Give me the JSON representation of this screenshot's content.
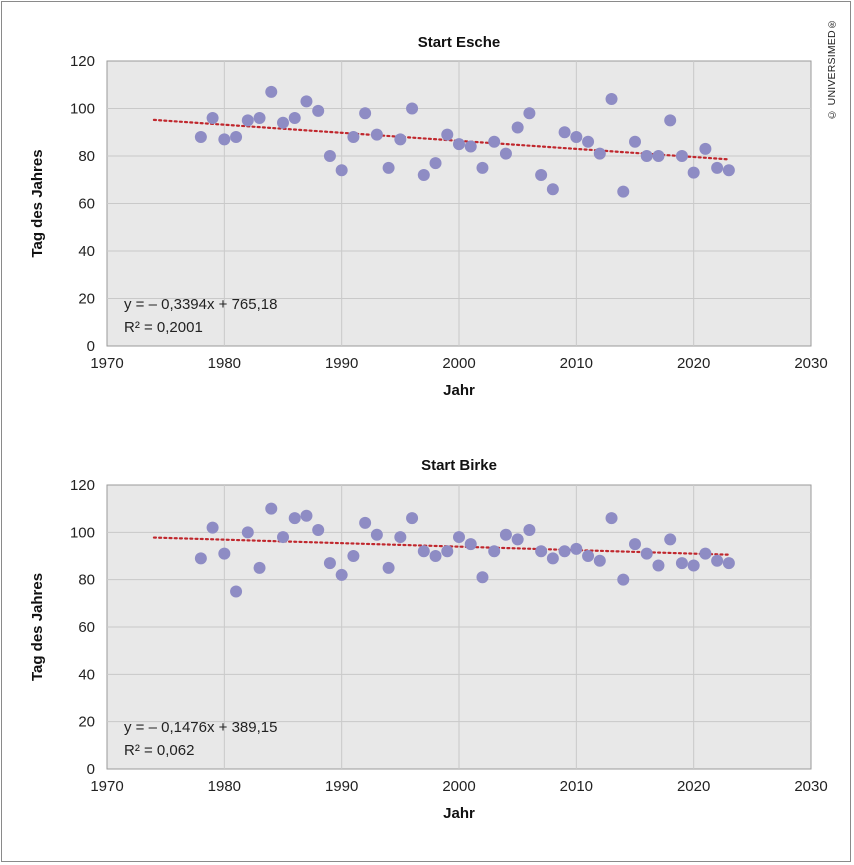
{
  "copyright": "© UNIVERSIMED®",
  "chart_data": [
    {
      "type": "scatter",
      "title": "Start Esche",
      "xlabel": "Jahr",
      "ylabel": "Tag des Jahres",
      "xlim": [
        1970,
        2030
      ],
      "ylim": [
        0,
        120
      ],
      "xticks": [
        "1970",
        "1980",
        "1990",
        "2000",
        "2010",
        "2020",
        "2030"
      ],
      "yticks": [
        "0",
        "20",
        "40",
        "60",
        "80",
        "100",
        "120"
      ],
      "grid": true,
      "marker_color": "#8e8cc4",
      "trend_color": "#c0272d",
      "x": [
        1978,
        1979,
        1980,
        1981,
        1982,
        1983,
        1984,
        1985,
        1986,
        1987,
        1988,
        1989,
        1990,
        1991,
        1992,
        1993,
        1994,
        1995,
        1996,
        1997,
        1998,
        1999,
        2000,
        2001,
        2002,
        2003,
        2004,
        2005,
        2006,
        2007,
        2008,
        2009,
        2010,
        2011,
        2012,
        2013,
        2014,
        2015,
        2016,
        2017,
        2018,
        2019,
        2020,
        2021,
        2022,
        2023
      ],
      "y": [
        88,
        96,
        87,
        88,
        95,
        96,
        107,
        94,
        96,
        103,
        99,
        80,
        74,
        88,
        98,
        89,
        75,
        87,
        100,
        72,
        77,
        89,
        85,
        84,
        75,
        86,
        81,
        92,
        98,
        72,
        66,
        90,
        88,
        86,
        81,
        104,
        65,
        86,
        80,
        80,
        95,
        80,
        73,
        83,
        75,
        74
      ],
      "trendline": {
        "type": "linear",
        "slope": -0.3394,
        "intercept": 765.18,
        "x_range": [
          1974,
          2023
        ]
      },
      "equation": "y = – 0,3394x + 765,18",
      "r2": "R² = 0,2001"
    },
    {
      "type": "scatter",
      "title": "Start Birke",
      "xlabel": "Jahr",
      "ylabel": "Tag des Jahres",
      "xlim": [
        1970,
        2030
      ],
      "ylim": [
        0,
        120
      ],
      "xticks": [
        "1970",
        "1980",
        "1990",
        "2000",
        "2010",
        "2020",
        "2030"
      ],
      "yticks": [
        "0",
        "20",
        "40",
        "60",
        "80",
        "100",
        "120"
      ],
      "grid": true,
      "marker_color": "#8e8cc4",
      "trend_color": "#c0272d",
      "x": [
        1978,
        1979,
        1980,
        1981,
        1982,
        1983,
        1984,
        1985,
        1986,
        1987,
        1988,
        1989,
        1990,
        1991,
        1992,
        1993,
        1994,
        1995,
        1996,
        1997,
        1998,
        1999,
        2000,
        2001,
        2002,
        2003,
        2004,
        2005,
        2006,
        2007,
        2008,
        2009,
        2010,
        2011,
        2012,
        2013,
        2014,
        2015,
        2016,
        2017,
        2018,
        2019,
        2020,
        2021,
        2022,
        2023
      ],
      "y": [
        89,
        102,
        91,
        75,
        100,
        85,
        110,
        98,
        106,
        107,
        101,
        87,
        82,
        90,
        104,
        99,
        85,
        98,
        106,
        92,
        90,
        92,
        98,
        95,
        81,
        92,
        99,
        97,
        101,
        92,
        89,
        92,
        93,
        90,
        88,
        106,
        80,
        95,
        91,
        86,
        97,
        87,
        86,
        91,
        88,
        87
      ],
      "trendline": {
        "type": "linear",
        "slope": -0.1476,
        "intercept": 389.15,
        "x_range": [
          1974,
          2023
        ]
      },
      "equation": "y = – 0,1476x + 389,15",
      "r2": "R² = 0,062"
    }
  ]
}
